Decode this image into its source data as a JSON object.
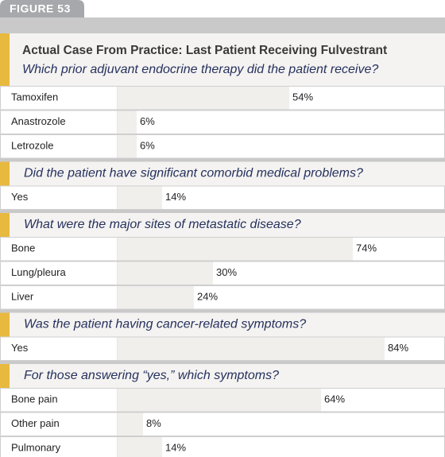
{
  "figure_label": "FIGURE 53",
  "title": "Actual Case From Practice: Last Patient Receiving Fulvestrant",
  "sections": [
    {
      "question": "Which prior adjuvant endocrine therapy did the patient receive?",
      "categories": [
        "Tamoxifen",
        "Anastrozole",
        "Letrozole"
      ],
      "values": [
        54,
        6,
        6
      ],
      "value_labels": [
        "54%",
        "6%",
        "6%"
      ]
    },
    {
      "question": "Did the patient have significant comorbid medical problems?",
      "categories": [
        "Yes"
      ],
      "values": [
        14
      ],
      "value_labels": [
        "14%"
      ]
    },
    {
      "question": "What were the major sites of metastatic disease?",
      "categories": [
        "Bone",
        "Lung/pleura",
        "Liver"
      ],
      "values": [
        74,
        30,
        24
      ],
      "value_labels": [
        "74%",
        "30%",
        "24%"
      ]
    },
    {
      "question": "Was the patient having cancer-related symptoms?",
      "categories": [
        "Yes"
      ],
      "values": [
        84
      ],
      "value_labels": [
        "84%"
      ]
    },
    {
      "question": "For those answering “yes,” which symptoms?",
      "categories": [
        "Bone pain",
        "Other pain",
        "Pulmonary"
      ],
      "values": [
        64,
        8,
        14
      ],
      "value_labels": [
        "64%",
        "8%",
        "14%"
      ]
    }
  ]
}
